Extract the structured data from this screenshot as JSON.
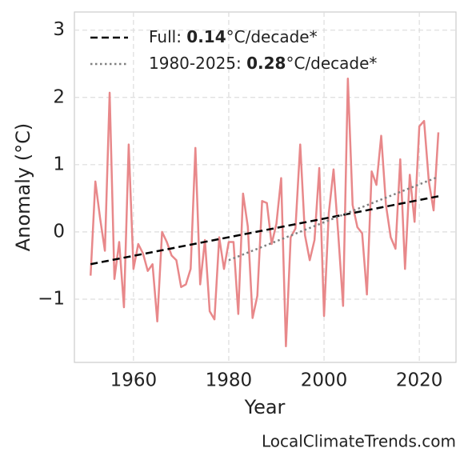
{
  "chart_data": {
    "type": "line",
    "xlabel": "Year",
    "ylabel": "Anomaly (°C)",
    "source": "LocalClimateTrends.com",
    "xlim": [
      1947.6,
      2027.7
    ],
    "ylim": [
      -1.94,
      3.27
    ],
    "xticks": [
      1960,
      1980,
      2000,
      2020
    ],
    "yticks": [
      {
        "value": -1,
        "label": "−1"
      },
      0,
      1,
      2,
      3
    ],
    "grid": true,
    "x": [
      1951,
      1952,
      1953,
      1954,
      1955,
      1956,
      1957,
      1958,
      1959,
      1960,
      1961,
      1962,
      1963,
      1964,
      1965,
      1966,
      1967,
      1968,
      1969,
      1970,
      1971,
      1972,
      1973,
      1974,
      1975,
      1976,
      1977,
      1978,
      1979,
      1980,
      1981,
      1982,
      1983,
      1984,
      1985,
      1986,
      1987,
      1988,
      1989,
      1990,
      1991,
      1992,
      1993,
      1994,
      1995,
      1996,
      1997,
      1998,
      1999,
      2000,
      2001,
      2002,
      2003,
      2004,
      2005,
      2006,
      2007,
      2008,
      2009,
      2010,
      2011,
      2012,
      2013,
      2014,
      2015,
      2016,
      2017,
      2018,
      2019,
      2020,
      2021,
      2022,
      2023,
      2024
    ],
    "series": [
      {
        "color": "#e8888a",
        "values": [
          -0.65,
          0.75,
          0.2,
          -0.28,
          2.07,
          -0.7,
          -0.15,
          -1.12,
          1.3,
          -0.55,
          -0.18,
          -0.32,
          -0.58,
          -0.48,
          -1.33,
          0.0,
          -0.15,
          -0.35,
          -0.42,
          -0.82,
          -0.78,
          -0.55,
          1.25,
          -0.78,
          -0.12,
          -1.18,
          -1.3,
          -0.08,
          -0.55,
          -0.15,
          -0.15,
          -1.22,
          0.57,
          0.08,
          -1.28,
          -0.95,
          0.46,
          0.43,
          -0.18,
          0.12,
          0.8,
          -1.7,
          -0.08,
          0.05,
          1.3,
          -0.05,
          -0.42,
          -0.12,
          0.95,
          -1.25,
          0.28,
          0.93,
          -0.05,
          -1.1,
          2.28,
          0.4,
          0.07,
          -0.02,
          -0.93,
          0.9,
          0.7,
          1.43,
          0.4,
          -0.08,
          -0.25,
          1.08,
          -0.55,
          0.85,
          0.15,
          1.57,
          1.65,
          0.75,
          0.32,
          1.48
        ]
      }
    ],
    "trends": [
      {
        "prefix": "Full: ",
        "rate": 0.14,
        "suffix": "°C/decade*",
        "color": "#000000",
        "style": "dashed",
        "x": [
          1951,
          2024
        ],
        "values": [
          -0.48,
          0.53
        ]
      },
      {
        "prefix": "1980-2025: ",
        "rate": 0.28,
        "suffix": "°C/decade*",
        "color": "#808080",
        "style": "dotted",
        "x": [
          1980,
          2024
        ],
        "values": [
          -0.42,
          0.82
        ]
      }
    ]
  }
}
